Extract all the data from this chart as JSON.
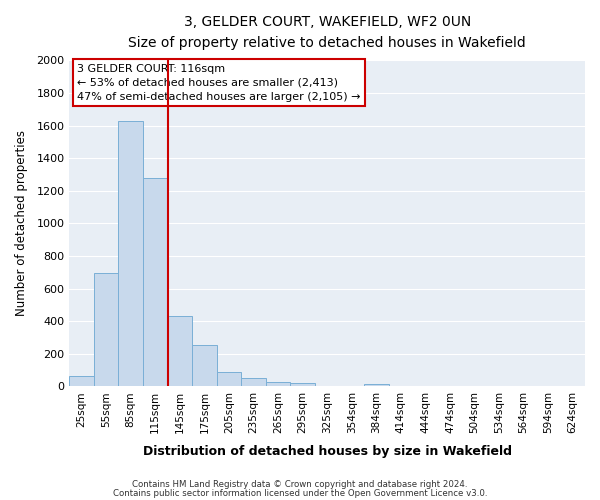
{
  "title": "3, GELDER COURT, WAKEFIELD, WF2 0UN",
  "subtitle": "Size of property relative to detached houses in Wakefield",
  "xlabel": "Distribution of detached houses by size in Wakefield",
  "ylabel": "Number of detached properties",
  "bar_labels": [
    "25sqm",
    "55sqm",
    "85sqm",
    "115sqm",
    "145sqm",
    "175sqm",
    "205sqm",
    "235sqm",
    "265sqm",
    "295sqm",
    "325sqm",
    "354sqm",
    "384sqm",
    "414sqm",
    "444sqm",
    "474sqm",
    "504sqm",
    "534sqm",
    "564sqm",
    "594sqm",
    "624sqm"
  ],
  "bar_values": [
    65,
    695,
    1630,
    1280,
    435,
    255,
    90,
    50,
    25,
    20,
    0,
    0,
    15,
    0,
    0,
    0,
    0,
    0,
    0,
    0,
    0
  ],
  "bar_color": "#c8d9ec",
  "bar_edge_color": "#7aafd6",
  "fig_bg_color": "#ffffff",
  "plot_bg_color": "#e8eef5",
  "grid_color": "#ffffff",
  "vline_color": "#cc0000",
  "vline_x_index": 3,
  "annotation_line1": "3 GELDER COURT: 116sqm",
  "annotation_line2": "← 53% of detached houses are smaller (2,413)",
  "annotation_line3": "47% of semi-detached houses are larger (2,105) →",
  "annotation_box_color": "#ffffff",
  "annotation_box_edge": "#cc0000",
  "ylim": [
    0,
    2000
  ],
  "yticks": [
    0,
    200,
    400,
    600,
    800,
    1000,
    1200,
    1400,
    1600,
    1800,
    2000
  ],
  "footer_line1": "Contains HM Land Registry data © Crown copyright and database right 2024.",
  "footer_line2": "Contains public sector information licensed under the Open Government Licence v3.0."
}
